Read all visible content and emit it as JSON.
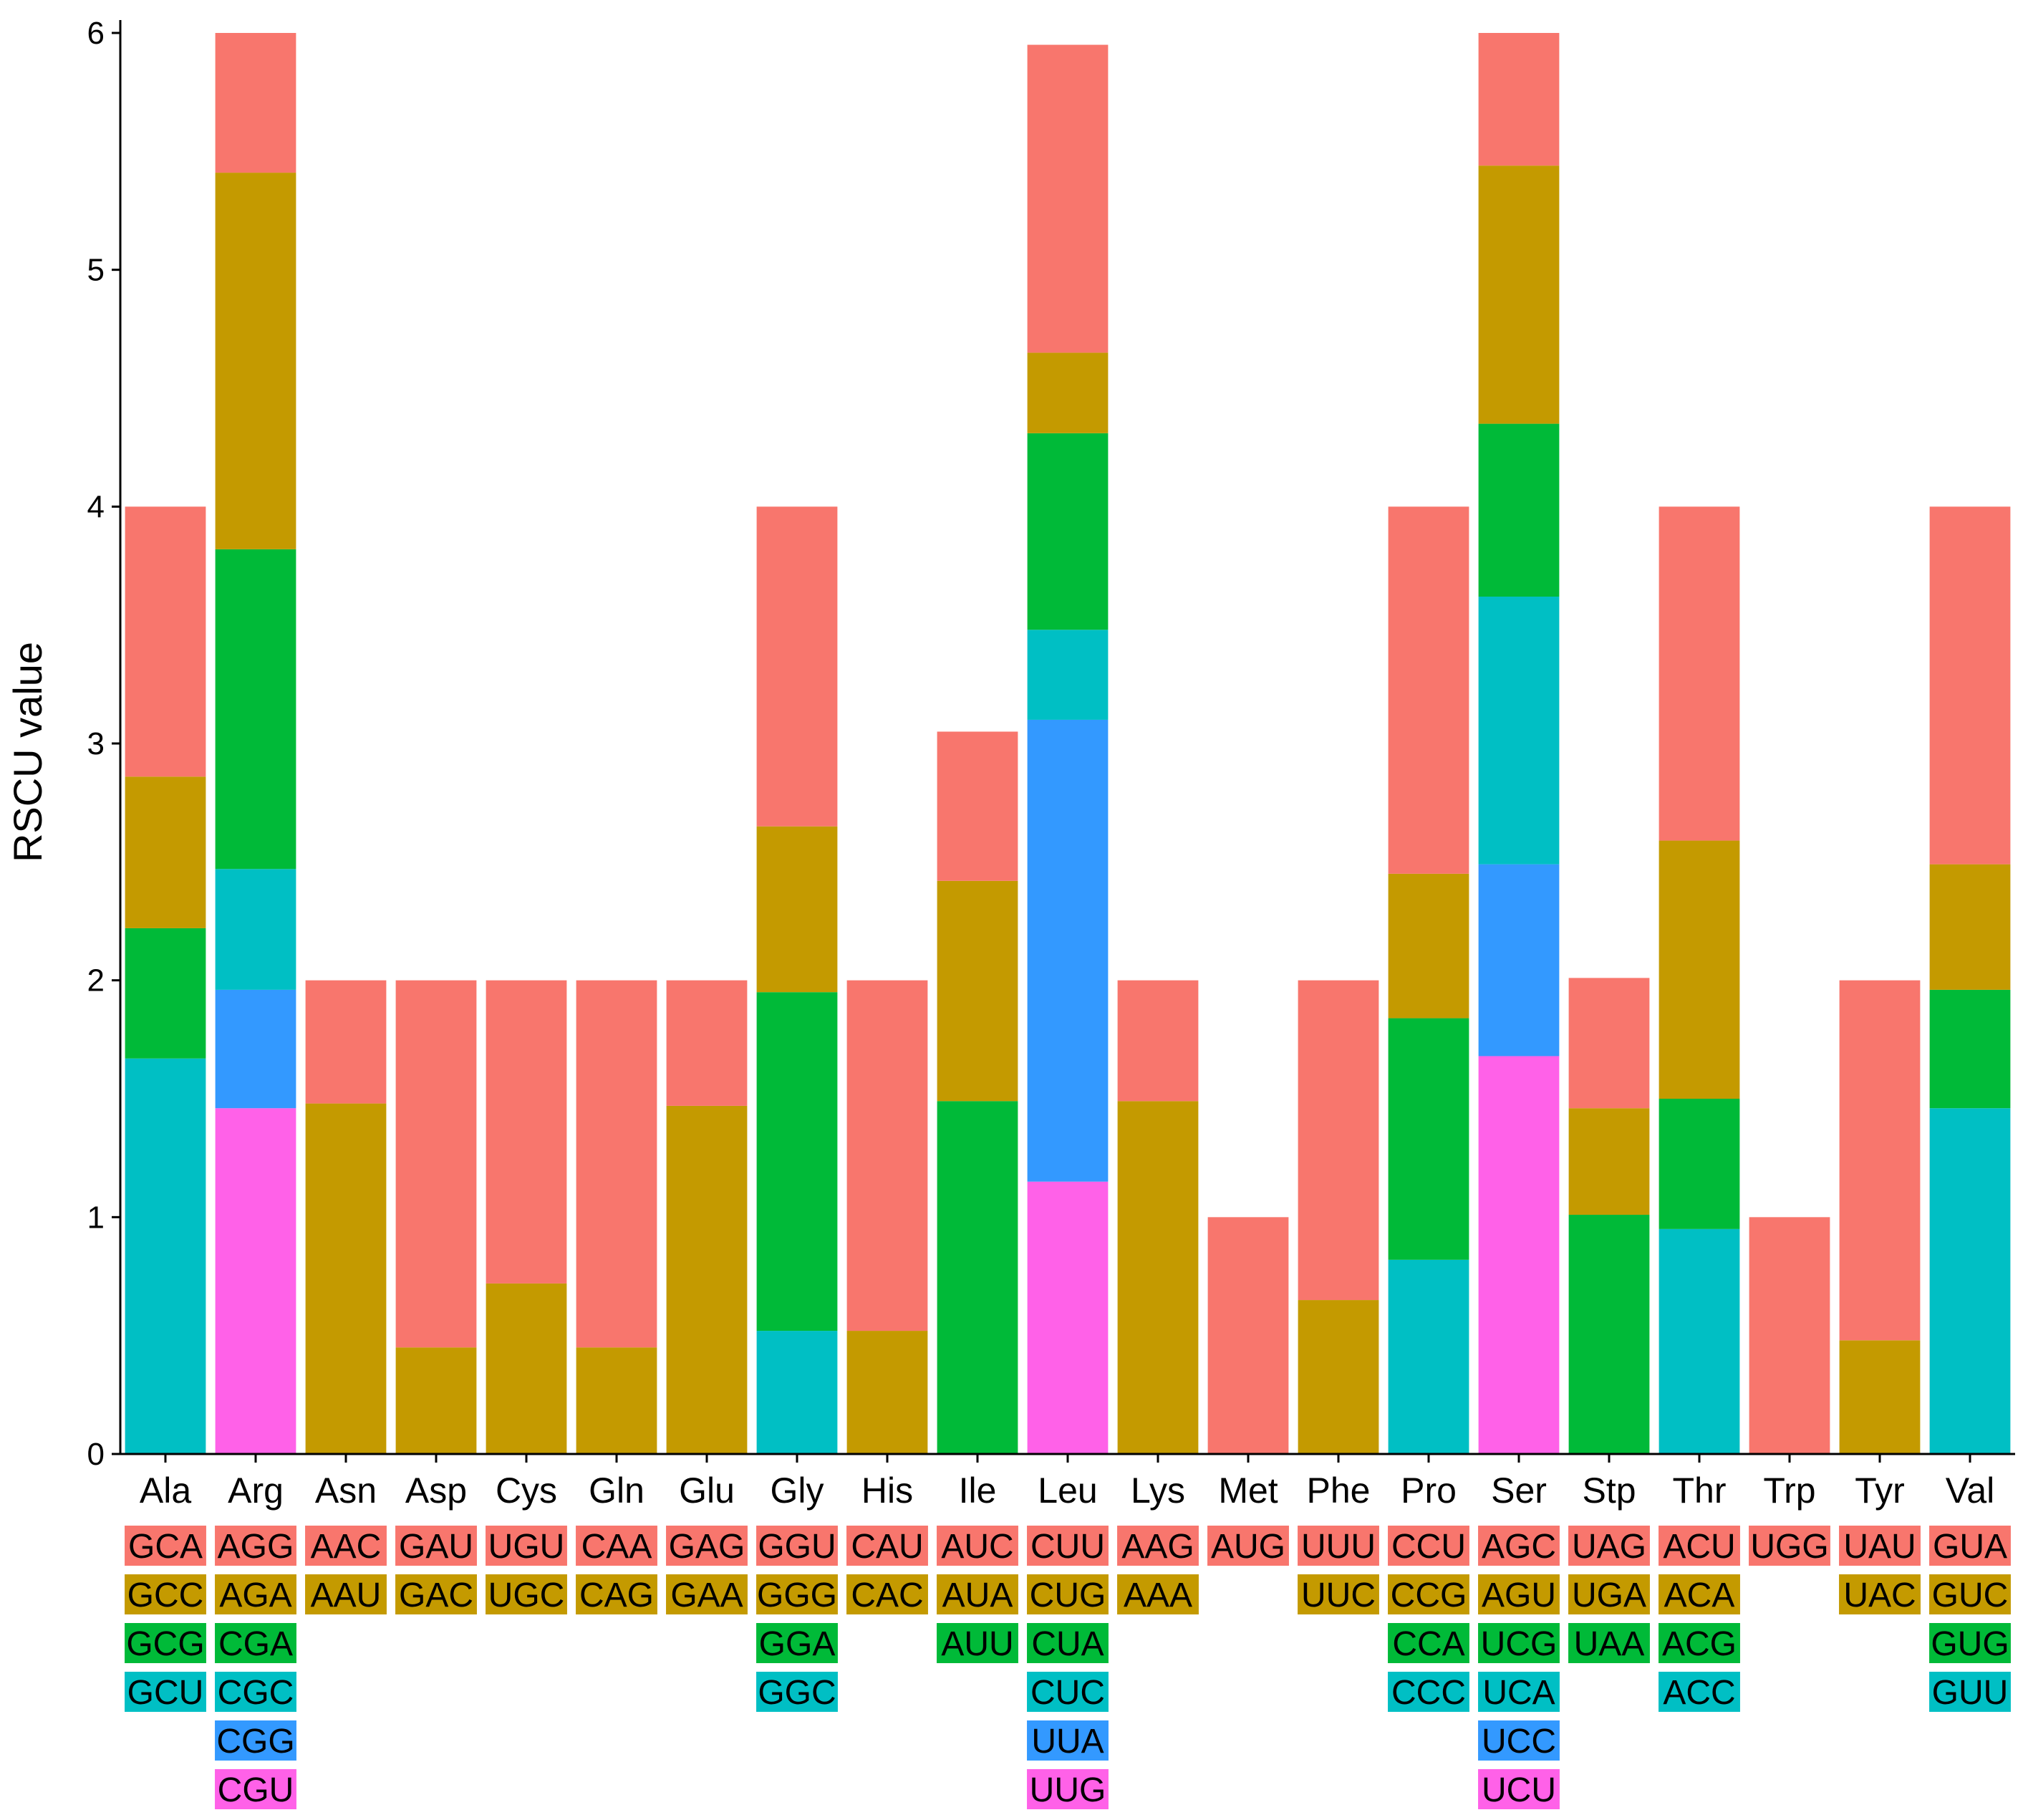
{
  "chart_data": {
    "type": "bar",
    "stacked": true,
    "title": "",
    "xlabel": "",
    "ylabel": "RSCU value",
    "ylim": [
      0,
      6
    ],
    "yticks": [
      0,
      1,
      2,
      3,
      4,
      5,
      6
    ],
    "grid": false,
    "legend": "none (codon boxes shown below each bar)",
    "palette": {
      "1": "#F8766D",
      "2": "#C49A00",
      "3": "#00BA38",
      "4": "#00BFC4",
      "5": "#3399FF",
      "6": "#FF61E8"
    },
    "categories": [
      "Ala",
      "Arg",
      "Asn",
      "Asp",
      "Cys",
      "Gln",
      "Glu",
      "Gly",
      "His",
      "Ile",
      "Leu",
      "Lys",
      "Met",
      "Phe",
      "Pro",
      "Ser",
      "Stp",
      "Thr",
      "Trp",
      "Tyr",
      "Val"
    ],
    "bars": [
      {
        "aa": "Ala",
        "codons": [
          {
            "codon": "GCA",
            "c": 1,
            "v": 1.14
          },
          {
            "codon": "GCC",
            "c": 2,
            "v": 0.64
          },
          {
            "codon": "GCG",
            "c": 3,
            "v": 0.55
          },
          {
            "codon": "GCU",
            "c": 4,
            "v": 1.67
          }
        ]
      },
      {
        "aa": "Arg",
        "codons": [
          {
            "codon": "AGG",
            "c": 1,
            "v": 0.59
          },
          {
            "codon": "AGA",
            "c": 2,
            "v": 1.59
          },
          {
            "codon": "CGA",
            "c": 3,
            "v": 1.35
          },
          {
            "codon": "CGC",
            "c": 4,
            "v": 0.51
          },
          {
            "codon": "CGG",
            "c": 5,
            "v": 0.5
          },
          {
            "codon": "CGU",
            "c": 6,
            "v": 1.46
          }
        ]
      },
      {
        "aa": "Asn",
        "codons": [
          {
            "codon": "AAC",
            "c": 1,
            "v": 0.52
          },
          {
            "codon": "AAU",
            "c": 2,
            "v": 1.48
          }
        ]
      },
      {
        "aa": "Asp",
        "codons": [
          {
            "codon": "GAU",
            "c": 1,
            "v": 1.55
          },
          {
            "codon": "GAC",
            "c": 2,
            "v": 0.45
          }
        ]
      },
      {
        "aa": "Cys",
        "codons": [
          {
            "codon": "UGU",
            "c": 1,
            "v": 1.28
          },
          {
            "codon": "UGC",
            "c": 2,
            "v": 0.72
          }
        ]
      },
      {
        "aa": "Gln",
        "codons": [
          {
            "codon": "CAA",
            "c": 1,
            "v": 1.55
          },
          {
            "codon": "CAG",
            "c": 2,
            "v": 0.45
          }
        ]
      },
      {
        "aa": "Glu",
        "codons": [
          {
            "codon": "GAG",
            "c": 1,
            "v": 0.53
          },
          {
            "codon": "GAA",
            "c": 2,
            "v": 1.47
          }
        ]
      },
      {
        "aa": "Gly",
        "codons": [
          {
            "codon": "GGU",
            "c": 1,
            "v": 1.35
          },
          {
            "codon": "GGG",
            "c": 2,
            "v": 0.7
          },
          {
            "codon": "GGA",
            "c": 3,
            "v": 1.43
          },
          {
            "codon": "GGC",
            "c": 4,
            "v": 0.52
          }
        ]
      },
      {
        "aa": "His",
        "codons": [
          {
            "codon": "CAU",
            "c": 1,
            "v": 1.48
          },
          {
            "codon": "CAC",
            "c": 2,
            "v": 0.52
          }
        ]
      },
      {
        "aa": "Ile",
        "codons": [
          {
            "codon": "AUC",
            "c": 1,
            "v": 0.63
          },
          {
            "codon": "AUA",
            "c": 2,
            "v": 0.93
          },
          {
            "codon": "AUU",
            "c": 3,
            "v": 1.49
          }
        ]
      },
      {
        "aa": "Leu",
        "codons": [
          {
            "codon": "CUU",
            "c": 1,
            "v": 1.3
          },
          {
            "codon": "CUG",
            "c": 2,
            "v": 0.34
          },
          {
            "codon": "CUA",
            "c": 3,
            "v": 0.83
          },
          {
            "codon": "CUC",
            "c": 4,
            "v": 0.38
          },
          {
            "codon": "UUA",
            "c": 5,
            "v": 1.95
          },
          {
            "codon": "UUG",
            "c": 6,
            "v": 1.15
          }
        ]
      },
      {
        "aa": "Lys",
        "codons": [
          {
            "codon": "AAG",
            "c": 1,
            "v": 0.51
          },
          {
            "codon": "AAA",
            "c": 2,
            "v": 1.49
          }
        ]
      },
      {
        "aa": "Met",
        "codons": [
          {
            "codon": "AUG",
            "c": 1,
            "v": 1.0
          }
        ]
      },
      {
        "aa": "Phe",
        "codons": [
          {
            "codon": "UUU",
            "c": 1,
            "v": 1.35
          },
          {
            "codon": "UUC",
            "c": 2,
            "v": 0.65
          }
        ]
      },
      {
        "aa": "Pro",
        "codons": [
          {
            "codon": "CCU",
            "c": 1,
            "v": 1.55
          },
          {
            "codon": "CCG",
            "c": 2,
            "v": 0.61
          },
          {
            "codon": "CCA",
            "c": 3,
            "v": 1.02
          },
          {
            "codon": "CCC",
            "c": 4,
            "v": 0.82
          }
        ]
      },
      {
        "aa": "Ser",
        "codons": [
          {
            "codon": "AGC",
            "c": 1,
            "v": 0.56
          },
          {
            "codon": "AGU",
            "c": 2,
            "v": 1.09
          },
          {
            "codon": "UCG",
            "c": 3,
            "v": 0.73
          },
          {
            "codon": "UCA",
            "c": 4,
            "v": 1.13
          },
          {
            "codon": "UCC",
            "c": 5,
            "v": 0.81
          },
          {
            "codon": "UCU",
            "c": 6,
            "v": 1.68
          }
        ]
      },
      {
        "aa": "Stp",
        "codons": [
          {
            "codon": "UAG",
            "c": 1,
            "v": 0.55
          },
          {
            "codon": "UGA",
            "c": 2,
            "v": 0.45
          },
          {
            "codon": "UAA",
            "c": 3,
            "v": 1.01
          }
        ]
      },
      {
        "aa": "Thr",
        "codons": [
          {
            "codon": "ACU",
            "c": 1,
            "v": 1.41
          },
          {
            "codon": "ACA",
            "c": 2,
            "v": 1.09
          },
          {
            "codon": "ACG",
            "c": 3,
            "v": 0.55
          },
          {
            "codon": "ACC",
            "c": 4,
            "v": 0.95
          }
        ]
      },
      {
        "aa": "Trp",
        "codons": [
          {
            "codon": "UGG",
            "c": 1,
            "v": 1.0
          }
        ]
      },
      {
        "aa": "Tyr",
        "codons": [
          {
            "codon": "UAU",
            "c": 1,
            "v": 1.52
          },
          {
            "codon": "UAC",
            "c": 2,
            "v": 0.48
          }
        ]
      },
      {
        "aa": "Val",
        "codons": [
          {
            "codon": "GUA",
            "c": 1,
            "v": 1.51
          },
          {
            "codon": "GUC",
            "c": 2,
            "v": 0.53
          },
          {
            "codon": "GUG",
            "c": 3,
            "v": 0.5
          },
          {
            "codon": "GUU",
            "c": 4,
            "v": 1.46
          }
        ]
      }
    ]
  }
}
